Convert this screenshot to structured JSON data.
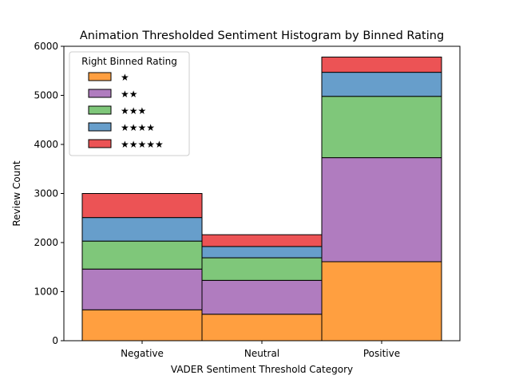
{
  "chart_data": {
    "type": "bar",
    "stacked": true,
    "title": "Animation Thresholded Sentiment Histogram by Binned Rating",
    "xlabel": "VADER Sentiment Threshold Category",
    "ylabel": "Review Count",
    "categories": [
      "Negative",
      "Neutral",
      "Positive"
    ],
    "ylim": [
      0,
      6000
    ],
    "yticks": [
      0,
      1000,
      2000,
      3000,
      4000,
      5000,
      6000
    ],
    "grid": false,
    "legend_title": "Right Binned Rating",
    "legend_position": "top-left",
    "series": [
      {
        "name": "★",
        "color": "#ff9f40",
        "values": [
          630,
          540,
          1610
        ]
      },
      {
        "name": "★★",
        "color": "#b07cbf",
        "values": [
          830,
          690,
          2120
        ]
      },
      {
        "name": "★★★",
        "color": "#7fc77a",
        "values": [
          570,
          460,
          1250
        ]
      },
      {
        "name": "★★★★",
        "color": "#679ecb",
        "values": [
          480,
          230,
          490
        ]
      },
      {
        "name": "★★★★★",
        "color": "#ec5355",
        "values": [
          490,
          240,
          310
        ]
      }
    ]
  }
}
